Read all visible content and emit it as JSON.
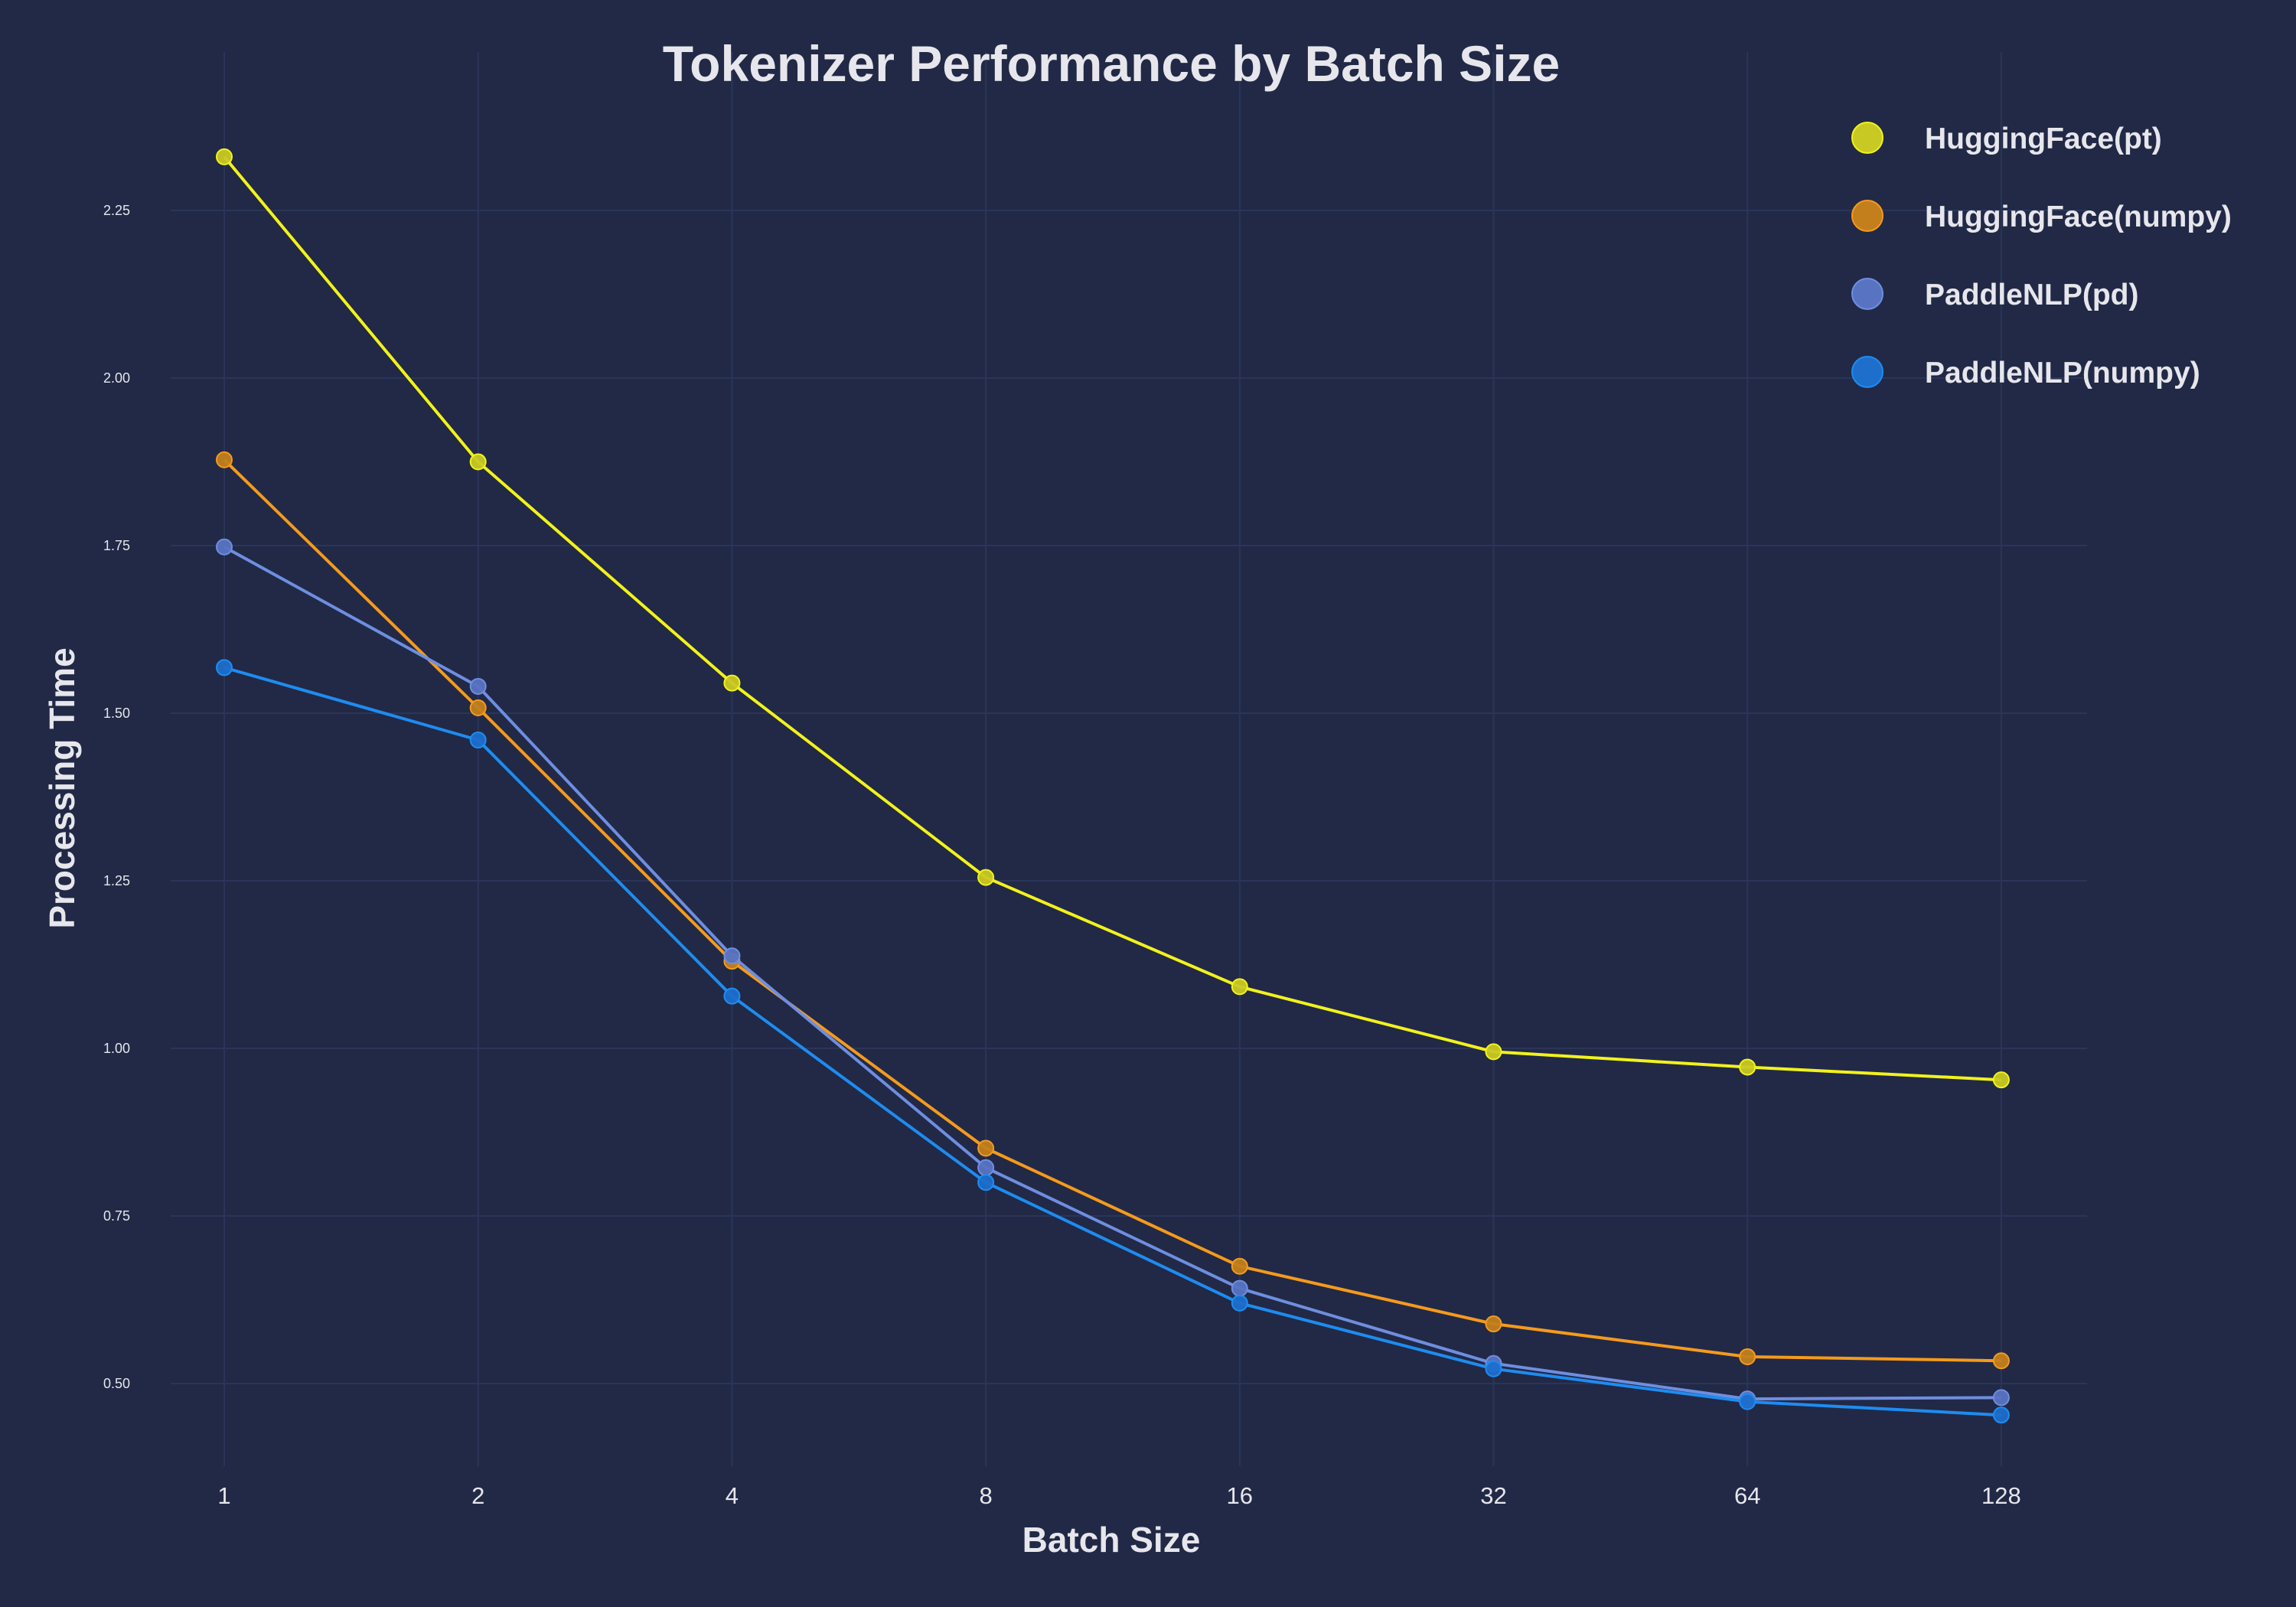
{
  "chart_data": {
    "type": "line",
    "title": "Tokenizer Performance by Batch Size",
    "xlabel": "Batch Size",
    "ylabel": "Processing Time",
    "x_scale": "log2",
    "categories": [
      "1",
      "2",
      "4",
      "8",
      "16",
      "32",
      "64",
      "128"
    ],
    "x": [
      1,
      2,
      4,
      8,
      16,
      32,
      64,
      128
    ],
    "ylim": [
      0.37,
      2.37
    ],
    "yticks": [
      "0.50",
      "0.75",
      "1.00",
      "1.25",
      "1.50",
      "1.75",
      "2.00",
      "2.25"
    ],
    "grid": true,
    "legend_position": "top-right",
    "series": [
      {
        "name": "HuggingFace(pt)",
        "color": "#F2F21C",
        "marker_color": "#C9C923",
        "values": [
          2.33,
          1.875,
          1.545,
          1.255,
          1.092,
          0.995,
          0.972,
          0.953
        ]
      },
      {
        "name": "HuggingFace(numpy)",
        "color": "#F59A1D",
        "marker_color": "#C27F1C",
        "values": [
          1.878,
          1.508,
          1.13,
          0.851,
          0.675,
          0.589,
          0.54,
          0.534
        ]
      },
      {
        "name": "PaddleNLP(pd)",
        "color": "#6E8EE0",
        "marker_color": "#5873C2",
        "values": [
          1.748,
          1.54,
          1.138,
          0.822,
          0.642,
          0.53,
          0.477,
          0.479
        ]
      },
      {
        "name": "PaddleNLP(numpy)",
        "color": "#1E8CF0",
        "marker_color": "#1E6ECC",
        "values": [
          1.568,
          1.46,
          1.078,
          0.8,
          0.62,
          0.522,
          0.473,
          0.453
        ]
      }
    ]
  }
}
